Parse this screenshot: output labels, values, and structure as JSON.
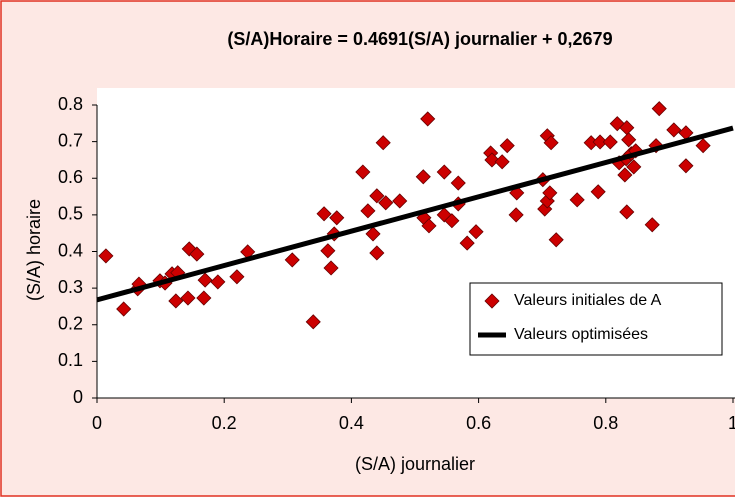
{
  "chart_data": {
    "type": "scatter",
    "title": "(S/A)Horaire = 0.4691(S/A) journalier + 0,2679",
    "xlabel": "(S/A) journalier",
    "ylabel": "(S/A) horaire",
    "xlim": [
      0,
      1
    ],
    "ylim": [
      0,
      0.8
    ],
    "xticks": [
      0,
      0.2,
      0.4,
      0.6,
      0.8,
      1
    ],
    "yticks": [
      0,
      0.1,
      0.2,
      0.3,
      0.4,
      0.5,
      0.6,
      0.7,
      0.8
    ],
    "legend": "lower right",
    "series": [
      {
        "name": "Valeurs initiales de A",
        "type": "scatter",
        "color": "#cc0000",
        "x": [
          0.014,
          0.042,
          0.064,
          0.066,
          0.099,
          0.107,
          0.118,
          0.124,
          0.127,
          0.143,
          0.145,
          0.157,
          0.168,
          0.17,
          0.19,
          0.22,
          0.237,
          0.307,
          0.34,
          0.357,
          0.363,
          0.368,
          0.377,
          0.373,
          0.418,
          0.426,
          0.434,
          0.44,
          0.44,
          0.45,
          0.454,
          0.476,
          0.513,
          0.514,
          0.52,
          0.522,
          0.546,
          0.546,
          0.558,
          0.568,
          0.568,
          0.582,
          0.596,
          0.619,
          0.621,
          0.637,
          0.645,
          0.659,
          0.66,
          0.701,
          0.704,
          0.708,
          0.708,
          0.712,
          0.714,
          0.722,
          0.755,
          0.777,
          0.788,
          0.791,
          0.807,
          0.818,
          0.821,
          0.832,
          0.833,
          0.836,
          0.83,
          0.833,
          0.84,
          0.844,
          0.847,
          0.873,
          0.879,
          0.884,
          0.907,
          0.926,
          0.926,
          0.953
        ],
        "values": [
          0.388,
          0.243,
          0.298,
          0.311,
          0.32,
          0.314,
          0.339,
          0.265,
          0.342,
          0.273,
          0.407,
          0.393,
          0.273,
          0.322,
          0.317,
          0.331,
          0.399,
          0.377,
          0.208,
          0.503,
          0.402,
          0.355,
          0.492,
          0.448,
          0.617,
          0.511,
          0.448,
          0.396,
          0.552,
          0.697,
          0.533,
          0.538,
          0.604,
          0.492,
          0.762,
          0.47,
          0.617,
          0.5,
          0.484,
          0.587,
          0.53,
          0.423,
          0.454,
          0.669,
          0.65,
          0.645,
          0.689,
          0.5,
          0.56,
          0.596,
          0.516,
          0.538,
          0.716,
          0.56,
          0.697,
          0.432,
          0.541,
          0.697,
          0.563,
          0.699,
          0.699,
          0.749,
          0.642,
          0.653,
          0.738,
          0.705,
          0.609,
          0.508,
          0.667,
          0.631,
          0.675,
          0.473,
          0.689,
          0.79,
          0.732,
          0.724,
          0.634,
          0.689
        ]
      },
      {
        "name": "Valeurs optimisées",
        "type": "line",
        "color": "#000000",
        "x": [
          0,
          1
        ],
        "values": [
          0.2679,
          0.737
        ]
      }
    ]
  }
}
